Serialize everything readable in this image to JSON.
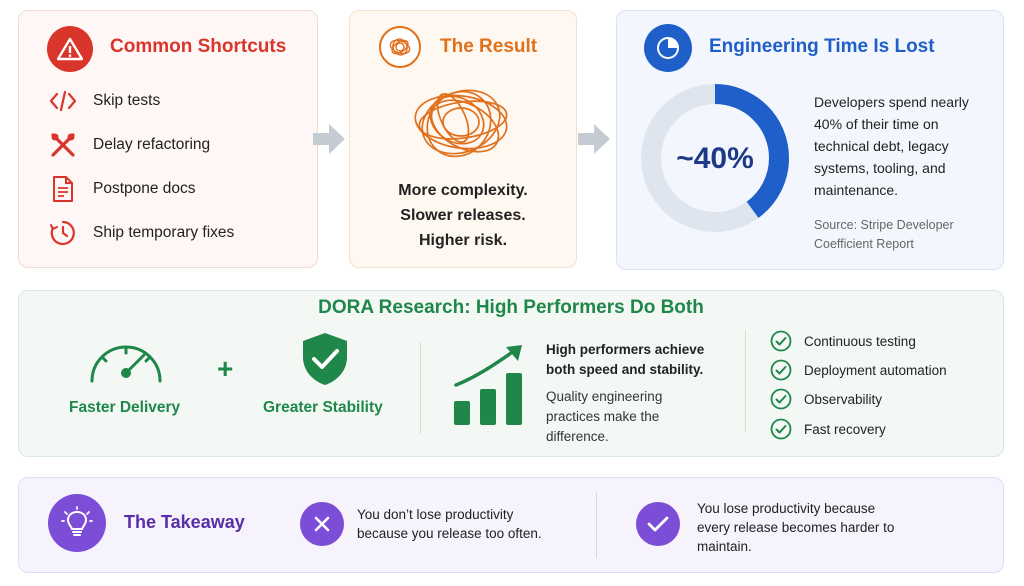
{
  "shortcuts": {
    "title": "Common Shortcuts",
    "items": [
      {
        "label": "Skip tests",
        "icon": "code-icon"
      },
      {
        "label": "Delay refactoring",
        "icon": "tools-icon"
      },
      {
        "label": "Postpone docs",
        "icon": "document-icon"
      },
      {
        "label": "Ship temporary fixes",
        "icon": "clock-icon"
      }
    ]
  },
  "result": {
    "title": "The Result",
    "lines": [
      "More complexity.",
      "Slower releases.",
      "Higher risk."
    ]
  },
  "engineering": {
    "title": "Engineering Time Is Lost",
    "stat": "~40%",
    "share": 0.4,
    "description": "Developers spend nearly 40% of their time on technical debt, legacy systems, tooling, and maintenance.",
    "source": "Source: Stripe Developer Coefficient Report"
  },
  "dora": {
    "title": "DORA Research: High Performers Do Both",
    "left_label": "Faster Delivery",
    "plus": "+",
    "right_label": "Greater Stability",
    "highlight": "High performers achieve both speed and stability.",
    "body": "Quality engineering practices make the difference.",
    "checklist": [
      "Continuous testing",
      "Deployment automation",
      "Observability",
      "Fast recovery"
    ]
  },
  "takeaway": {
    "title": "The Takeaway",
    "negative": "You don’t lose productivity because you release too often.",
    "positive": "You lose productivity because every release becomes harder to maintain."
  },
  "colors": {
    "red": "#d9352b",
    "orange": "#e0701c",
    "blue": "#1f5fc9",
    "green": "#20874a",
    "purple": "#7c4dd6"
  }
}
